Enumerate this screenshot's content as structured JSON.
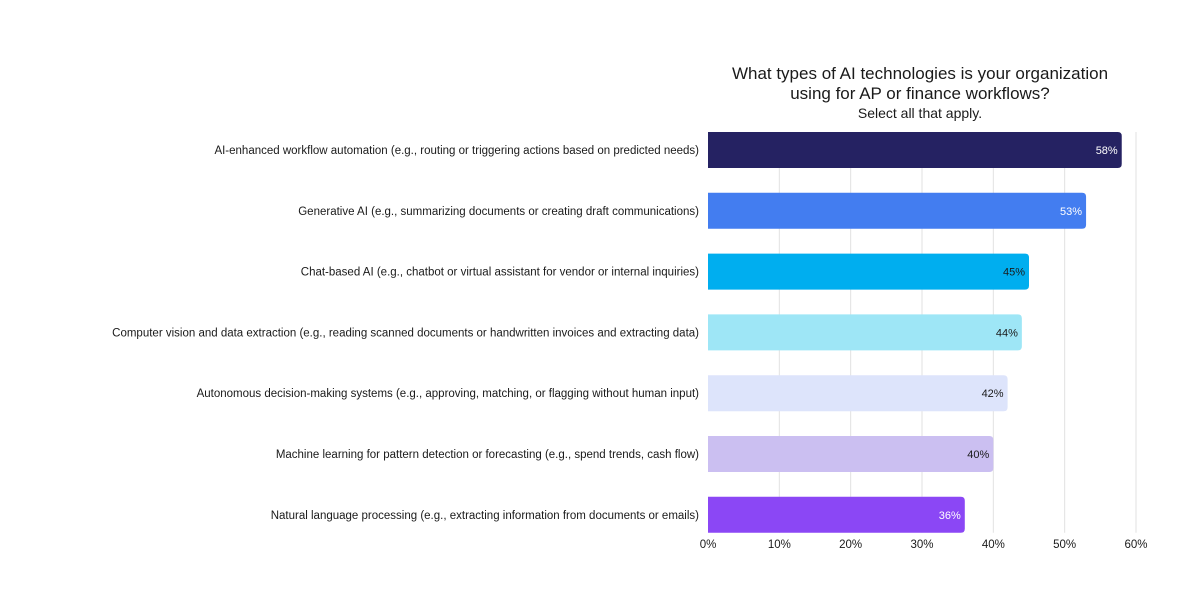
{
  "chart_data": {
    "type": "bar",
    "orientation": "horizontal",
    "title_lines": [
      "What types of AI technologies is your organization",
      "using for AP or finance workflows?"
    ],
    "subtitle": "Select all that apply.",
    "categories": [
      "AI-enhanced workflow automation (e.g., routing or triggering actions based on predicted needs)",
      "Generative AI (e.g., summarizing documents or creating draft communications)",
      "Chat-based AI (e.g., chatbot or virtual assistant for vendor or internal inquiries)",
      "Computer vision and data extraction (e.g., reading scanned documents or handwritten invoices and extracting data)",
      "Autonomous decision-making systems (e.g., approving, matching, or flagging without human input)",
      "Machine learning for pattern detection or forecasting (e.g., spend trends, cash flow)",
      "Natural language processing (e.g., extracting information from documents or emails)"
    ],
    "values": [
      58,
      53,
      45,
      44,
      42,
      40,
      36
    ],
    "value_labels": [
      "58%",
      "53%",
      "45%",
      "44%",
      "42%",
      "40%",
      "36%"
    ],
    "colors": [
      "#252262",
      "#437df0",
      "#00aeef",
      "#9ee6f6",
      "#dde4fb",
      "#cbbff1",
      "#8b47f5"
    ],
    "label_colors": [
      "#ffffff",
      "#ffffff",
      "#1a1a1a",
      "#1a1a1a",
      "#1a1a1a",
      "#1a1a1a",
      "#ffffff"
    ],
    "xlim": [
      0,
      60
    ],
    "xticks": [
      0,
      10,
      20,
      30,
      40,
      50,
      60
    ],
    "xtick_labels": [
      "0%",
      "10%",
      "20%",
      "30%",
      "40%",
      "50%",
      "60%"
    ],
    "grid": true,
    "legend": "none"
  }
}
